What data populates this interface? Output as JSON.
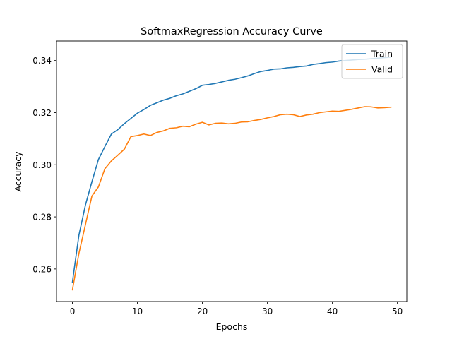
{
  "chart_data": {
    "type": "line",
    "title": "SoftmaxRegression Accuracy Curve",
    "xlabel": "Epochs",
    "ylabel": "Accuracy",
    "xlim": [
      -2.45,
      51.45
    ],
    "ylim": [
      0.2475,
      0.3475
    ],
    "xticks": [
      0,
      10,
      20,
      30,
      40,
      50
    ],
    "yticks": [
      0.26,
      0.28,
      0.3,
      0.32,
      0.34
    ],
    "ytick_labels": [
      "0.26",
      "0.28",
      "0.30",
      "0.32",
      "0.34"
    ],
    "legend_position": "top-right",
    "grid": false,
    "x": [
      0,
      1,
      2,
      3,
      4,
      5,
      6,
      7,
      8,
      9,
      10,
      11,
      12,
      13,
      14,
      15,
      16,
      17,
      18,
      19,
      20,
      21,
      22,
      23,
      24,
      25,
      26,
      27,
      28,
      29,
      30,
      31,
      32,
      33,
      34,
      35,
      36,
      37,
      38,
      39,
      40,
      41,
      42,
      43,
      44,
      45,
      46,
      47,
      48,
      49
    ],
    "series": [
      {
        "name": "Train",
        "color": "#1f77b4",
        "values": [
          0.255,
          0.273,
          0.2845,
          0.2935,
          0.302,
          0.307,
          0.3118,
          0.3135,
          0.3158,
          0.3178,
          0.3198,
          0.3212,
          0.3228,
          0.3238,
          0.3248,
          0.3255,
          0.3265,
          0.3272,
          0.3282,
          0.3292,
          0.3305,
          0.3308,
          0.3312,
          0.3318,
          0.3324,
          0.3328,
          0.3334,
          0.3341,
          0.335,
          0.3358,
          0.3362,
          0.3367,
          0.3368,
          0.3372,
          0.3374,
          0.3377,
          0.3379,
          0.3385,
          0.3388,
          0.3392,
          0.3394,
          0.3398,
          0.34,
          0.3402,
          0.3404,
          0.3405,
          0.3407,
          0.3409,
          0.3411,
          0.3413
        ]
      },
      {
        "name": "Valid",
        "color": "#ff7f0e",
        "values": [
          0.252,
          0.266,
          0.277,
          0.288,
          0.2915,
          0.2985,
          0.3015,
          0.3037,
          0.306,
          0.3108,
          0.3112,
          0.3118,
          0.3112,
          0.3124,
          0.313,
          0.314,
          0.3142,
          0.3148,
          0.3146,
          0.3156,
          0.3163,
          0.3153,
          0.3159,
          0.316,
          0.3157,
          0.3159,
          0.3164,
          0.3165,
          0.317,
          0.3174,
          0.318,
          0.3185,
          0.3192,
          0.3194,
          0.3192,
          0.3185,
          0.3191,
          0.3194,
          0.32,
          0.3203,
          0.3206,
          0.3205,
          0.3209,
          0.3213,
          0.3218,
          0.3223,
          0.3222,
          0.3218,
          0.3219,
          0.3221
        ]
      }
    ]
  }
}
